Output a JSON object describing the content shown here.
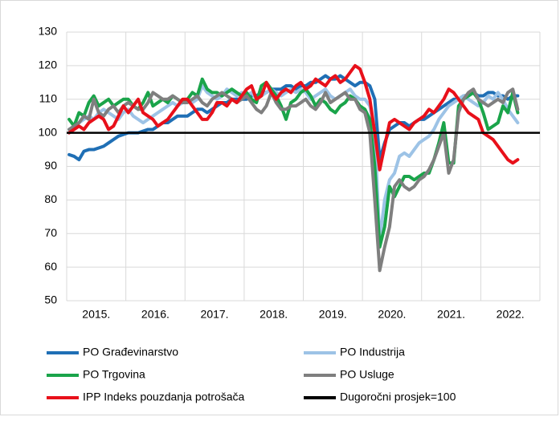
{
  "chart_data": {
    "type": "line",
    "x_labels": [
      "2015.",
      "2016.",
      "2017.",
      "2018.",
      "2019.",
      "2020.",
      "2021.",
      "2022."
    ],
    "ylim": [
      50,
      130
    ],
    "yticks": [
      50,
      60,
      70,
      80,
      90,
      100,
      110,
      120,
      130
    ],
    "grid": true,
    "series": [
      {
        "name": "PO Građevinarstvo",
        "color": "#1f6fb5",
        "values": [
          93.5,
          93,
          92,
          94.5,
          95,
          95,
          95.5,
          96,
          97,
          98,
          99,
          99.5,
          100,
          100,
          100,
          100.5,
          101,
          101,
          102,
          103,
          103,
          104,
          105,
          105,
          105,
          106,
          107,
          107,
          106,
          107,
          108,
          109,
          109,
          110,
          110,
          110,
          110,
          111,
          111,
          112,
          112,
          113,
          113,
          113,
          114,
          114,
          113,
          114,
          114,
          115,
          115,
          116,
          117,
          116,
          116,
          117,
          116,
          115,
          114,
          115,
          115,
          114,
          110,
          92,
          97,
          101,
          102,
          103,
          103,
          102,
          103,
          104,
          104,
          105,
          106,
          107,
          108,
          109,
          110,
          110,
          111,
          111,
          112,
          111,
          111,
          112,
          112,
          111,
          111,
          110,
          111,
          111
        ]
      },
      {
        "name": "PO Industrija",
        "color": "#9dc3e6",
        "values": [
          101,
          102,
          103,
          104,
          105,
          104,
          106,
          107,
          106,
          105,
          104,
          106,
          107,
          105,
          104,
          103,
          104,
          105,
          106,
          107,
          108,
          109,
          108,
          109,
          110,
          109,
          110,
          114,
          112,
          111,
          110,
          111,
          113,
          112,
          111,
          112,
          111,
          112,
          110,
          111,
          112,
          113,
          112,
          111,
          112,
          113,
          112,
          113,
          112,
          110,
          111,
          112,
          113,
          111,
          110,
          111,
          112,
          113,
          111,
          110,
          110,
          108,
          100,
          68,
          80,
          86,
          88,
          93,
          94,
          93,
          95,
          97,
          98,
          99,
          101,
          104,
          106,
          108,
          109,
          110,
          111,
          110,
          109,
          108,
          109,
          111,
          110,
          112,
          110,
          107,
          105,
          103
        ]
      },
      {
        "name": "PO Trgovina",
        "color": "#1aa44a",
        "values": [
          104,
          102,
          106,
          105,
          109,
          111,
          108,
          109,
          110,
          108,
          109,
          110,
          110,
          108,
          107,
          109,
          112,
          108,
          109,
          110,
          109,
          111,
          110,
          109,
          110,
          112,
          111,
          116,
          113,
          112,
          112,
          111,
          112,
          113,
          112,
          111,
          112,
          110,
          109,
          114,
          115,
          113,
          111,
          108,
          104,
          109,
          110,
          112,
          113,
          111,
          108,
          110,
          109,
          107,
          106,
          108,
          109,
          111,
          110,
          108,
          107,
          104,
          90,
          66,
          72,
          84,
          81,
          84,
          87,
          87,
          86,
          87,
          88,
          88,
          92,
          97,
          103,
          91,
          91,
          108,
          110,
          111,
          112,
          110,
          106,
          101,
          102,
          103,
          108,
          106,
          112,
          106
        ]
      },
      {
        "name": "PO Usluge",
        "color": "#7f7f7f",
        "values": [
          101,
          102,
          103,
          105,
          104,
          110,
          106,
          105,
          107,
          108,
          106,
          108,
          109,
          108,
          107,
          107,
          109,
          112,
          111,
          110,
          110,
          111,
          110,
          109,
          109,
          110,
          111,
          109,
          108,
          110,
          111,
          112,
          111,
          110,
          109,
          110,
          111,
          109,
          107,
          106,
          108,
          112,
          109,
          107,
          107,
          108,
          108,
          109,
          110,
          108,
          107,
          109,
          112,
          109,
          110,
          111,
          112,
          110,
          110,
          107,
          106,
          100,
          80,
          59,
          66,
          72,
          84,
          86,
          84,
          83,
          84,
          86,
          87,
          89,
          92,
          96,
          100,
          88,
          92,
          106,
          110,
          112,
          113,
          110,
          109,
          108,
          109,
          110,
          109,
          112,
          113,
          107
        ]
      },
      {
        "name": "IPP Indeks pouzdanja potrošača",
        "color": "#e8101a",
        "values": [
          100,
          101,
          102,
          101,
          103,
          104,
          105,
          104,
          101,
          102,
          105,
          108,
          106,
          108,
          110,
          106,
          105,
          104,
          102,
          103,
          104,
          106,
          108,
          110,
          110,
          108,
          106,
          104,
          104,
          106,
          109,
          109,
          108,
          110,
          109,
          111,
          113,
          114,
          110,
          111,
          115,
          112,
          110,
          112,
          113,
          112,
          114,
          115,
          113,
          114,
          116,
          115,
          114,
          116,
          117,
          115,
          116,
          118,
          120,
          119,
          115,
          110,
          100,
          89,
          96,
          103,
          104,
          103,
          102,
          101,
          103,
          104,
          105,
          107,
          106,
          108,
          110,
          113,
          112,
          110,
          108,
          106,
          105,
          104,
          100,
          99,
          98,
          96,
          94,
          92,
          91,
          92
        ]
      }
    ],
    "reference_line": {
      "name": "Dugoročni prosjek=100",
      "value": 100,
      "color": "#000000"
    }
  }
}
